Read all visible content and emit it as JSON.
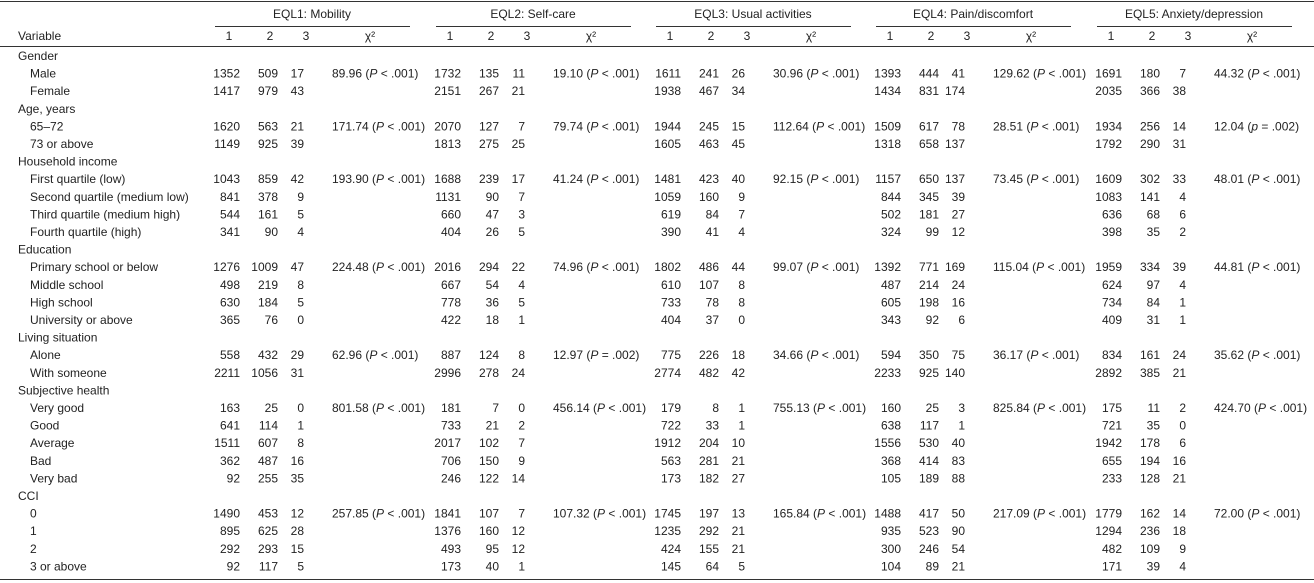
{
  "table": {
    "groups": [
      "EQL1: Mobility",
      "EQL2: Self-care",
      "EQL3: Usual activities",
      "EQL4: Pain/discomfort",
      "EQL5: Anxiety/depression"
    ],
    "variable_header": "Variable",
    "column_labels": [
      "1",
      "2",
      "3",
      "χ²"
    ],
    "sections": [
      {
        "title": "Gender",
        "rows": [
          {
            "label": "Male",
            "counts": [
              [
                1352,
                509,
                17
              ],
              [
                1732,
                135,
                11
              ],
              [
                1611,
                241,
                26
              ],
              [
                1393,
                444,
                41
              ],
              [
                1691,
                180,
                7
              ]
            ],
            "chi": [
              "89.96 (P < .001)",
              "19.10 (P < .001)",
              "30.96 (P < .001)",
              "129.62 (P < .001)",
              "44.32 (P < .001)"
            ]
          },
          {
            "label": "Female",
            "counts": [
              [
                1417,
                979,
                43
              ],
              [
                2151,
                267,
                21
              ],
              [
                1938,
                467,
                34
              ],
              [
                1434,
                831,
                174
              ],
              [
                2035,
                366,
                38
              ]
            ]
          }
        ]
      },
      {
        "title": "Age, years",
        "rows": [
          {
            "label": "65–72",
            "counts": [
              [
                1620,
                563,
                21
              ],
              [
                2070,
                127,
                7
              ],
              [
                1944,
                245,
                15
              ],
              [
                1509,
                617,
                78
              ],
              [
                1934,
                256,
                14
              ]
            ],
            "chi": [
              "171.74 (P < .001)",
              "79.74 (P < .001)",
              "112.64 (P < .001)",
              "28.51 (P < .001)",
              "12.04 (p = .002)"
            ]
          },
          {
            "label": "73 or above",
            "counts": [
              [
                1149,
                925,
                39
              ],
              [
                1813,
                275,
                25
              ],
              [
                1605,
                463,
                45
              ],
              [
                1318,
                658,
                137
              ],
              [
                1792,
                290,
                31
              ]
            ]
          }
        ]
      },
      {
        "title": "Household income",
        "rows": [
          {
            "label": "First quartile (low)",
            "counts": [
              [
                1043,
                859,
                42
              ],
              [
                1688,
                239,
                17
              ],
              [
                1481,
                423,
                40
              ],
              [
                1157,
                650,
                137
              ],
              [
                1609,
                302,
                33
              ]
            ],
            "chi": [
              "193.90 (P < .001)",
              "41.24 (P < .001)",
              "92.15 (P < .001)",
              "73.45 (P < .001)",
              "48.01 (P < .001)"
            ]
          },
          {
            "label": "Second quartile (medium low)",
            "counts": [
              [
                841,
                378,
                9
              ],
              [
                1131,
                90,
                7
              ],
              [
                1059,
                160,
                9
              ],
              [
                844,
                345,
                39
              ],
              [
                1083,
                141,
                4
              ]
            ]
          },
          {
            "label": "Third quartile (medium high)",
            "counts": [
              [
                544,
                161,
                5
              ],
              [
                660,
                47,
                3
              ],
              [
                619,
                84,
                7
              ],
              [
                502,
                181,
                27
              ],
              [
                636,
                68,
                6
              ]
            ]
          },
          {
            "label": "Fourth quartile (high)",
            "counts": [
              [
                341,
                90,
                4
              ],
              [
                404,
                26,
                5
              ],
              [
                390,
                41,
                4
              ],
              [
                324,
                99,
                12
              ],
              [
                398,
                35,
                2
              ]
            ]
          }
        ]
      },
      {
        "title": "Education",
        "rows": [
          {
            "label": "Primary school or below",
            "counts": [
              [
                1276,
                1009,
                47
              ],
              [
                2016,
                294,
                22
              ],
              [
                1802,
                486,
                44
              ],
              [
                1392,
                771,
                169
              ],
              [
                1959,
                334,
                39
              ]
            ],
            "chi": [
              "224.48 (P < .001)",
              "74.96 (P < .001)",
              "99.07 (P < .001)",
              "115.04 (P < .001)",
              "44.81 (P < .001)"
            ]
          },
          {
            "label": "Middle school",
            "counts": [
              [
                498,
                219,
                8
              ],
              [
                667,
                54,
                4
              ],
              [
                610,
                107,
                8
              ],
              [
                487,
                214,
                24
              ],
              [
                624,
                97,
                4
              ]
            ]
          },
          {
            "label": "High school",
            "counts": [
              [
                630,
                184,
                5
              ],
              [
                778,
                36,
                5
              ],
              [
                733,
                78,
                8
              ],
              [
                605,
                198,
                16
              ],
              [
                734,
                84,
                1
              ]
            ]
          },
          {
            "label": "University or above",
            "counts": [
              [
                365,
                76,
                0
              ],
              [
                422,
                18,
                1
              ],
              [
                404,
                37,
                0
              ],
              [
                343,
                92,
                6
              ],
              [
                409,
                31,
                1
              ]
            ]
          }
        ]
      },
      {
        "title": "Living situation",
        "rows": [
          {
            "label": "Alone",
            "counts": [
              [
                558,
                432,
                29
              ],
              [
                887,
                124,
                8
              ],
              [
                775,
                226,
                18
              ],
              [
                594,
                350,
                75
              ],
              [
                834,
                161,
                24
              ]
            ],
            "chi": [
              "62.96 (P < .001)",
              "12.97 (P = .002)",
              "34.66 (P < .001)",
              "36.17 (P < .001)",
              "35.62 (P < .001)"
            ]
          },
          {
            "label": "With someone",
            "counts": [
              [
                2211,
                1056,
                31
              ],
              [
                2996,
                278,
                24
              ],
              [
                2774,
                482,
                42
              ],
              [
                2233,
                925,
                140
              ],
              [
                2892,
                385,
                21
              ]
            ]
          }
        ]
      },
      {
        "title": "Subjective health",
        "rows": [
          {
            "label": "Very good",
            "counts": [
              [
                163,
                25,
                0
              ],
              [
                181,
                7,
                0
              ],
              [
                179,
                8,
                1
              ],
              [
                160,
                25,
                3
              ],
              [
                175,
                11,
                2
              ]
            ],
            "chi": [
              "801.58 (P < .001)",
              "456.14 (P < .001)",
              "755.13 (P < .001)",
              "825.84 (P < .001)",
              "424.70 (P < .001)"
            ]
          },
          {
            "label": "Good",
            "counts": [
              [
                641,
                114,
                1
              ],
              [
                733,
                21,
                2
              ],
              [
                722,
                33,
                1
              ],
              [
                638,
                117,
                1
              ],
              [
                721,
                35,
                0
              ]
            ]
          },
          {
            "label": "Average",
            "counts": [
              [
                1511,
                607,
                8
              ],
              [
                2017,
                102,
                7
              ],
              [
                1912,
                204,
                10
              ],
              [
                1556,
                530,
                40
              ],
              [
                1942,
                178,
                6
              ]
            ]
          },
          {
            "label": "Bad",
            "counts": [
              [
                362,
                487,
                16
              ],
              [
                706,
                150,
                9
              ],
              [
                563,
                281,
                21
              ],
              [
                368,
                414,
                83
              ],
              [
                655,
                194,
                16
              ]
            ]
          },
          {
            "label": "Very bad",
            "counts": [
              [
                92,
                255,
                35
              ],
              [
                246,
                122,
                14
              ],
              [
                173,
                182,
                27
              ],
              [
                105,
                189,
                88
              ],
              [
                233,
                128,
                21
              ]
            ]
          }
        ]
      },
      {
        "title": "CCI",
        "rows": [
          {
            "label": "0",
            "counts": [
              [
                1490,
                453,
                12
              ],
              [
                1841,
                107,
                7
              ],
              [
                1745,
                197,
                13
              ],
              [
                1488,
                417,
                50
              ],
              [
                1779,
                162,
                14
              ]
            ],
            "chi": [
              "257.85 (P < .001)",
              "107.32 (P < .001)",
              "165.84 (P < .001)",
              "217.09 (P < .001)",
              "72.00 (P < .001)"
            ]
          },
          {
            "label": "1",
            "counts": [
              [
                895,
                625,
                28
              ],
              [
                1376,
                160,
                12
              ],
              [
                1235,
                292,
                21
              ],
              [
                935,
                523,
                90
              ],
              [
                1294,
                236,
                18
              ]
            ]
          },
          {
            "label": "2",
            "counts": [
              [
                292,
                293,
                15
              ],
              [
                493,
                95,
                12
              ],
              [
                424,
                155,
                21
              ],
              [
                300,
                246,
                54
              ],
              [
                482,
                109,
                9
              ]
            ]
          },
          {
            "label": "3 or above",
            "counts": [
              [
                92,
                117,
                5
              ],
              [
                173,
                40,
                1
              ],
              [
                145,
                64,
                5
              ],
              [
                104,
                89,
                21
              ],
              [
                171,
                39,
                4
              ]
            ]
          }
        ]
      }
    ]
  }
}
